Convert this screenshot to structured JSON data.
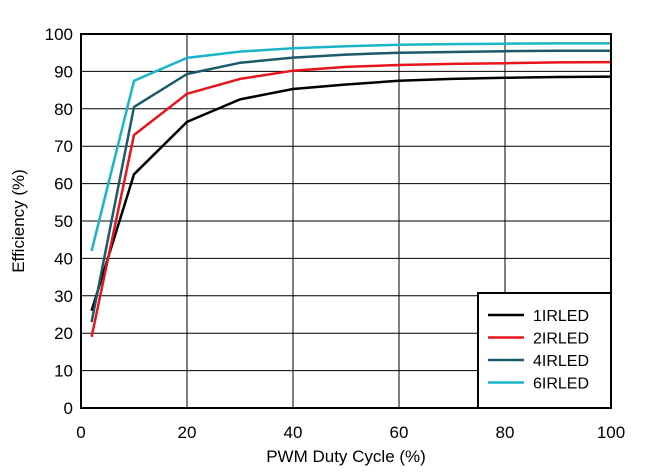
{
  "chart_data": {
    "type": "line",
    "title": "",
    "xlabel": "PWM Duty Cycle (%)",
    "ylabel": "Efficiency (%)",
    "xlim": [
      0,
      100
    ],
    "ylim": [
      0,
      100
    ],
    "xticks": [
      0,
      20,
      40,
      60,
      80,
      100
    ],
    "yticks": [
      0,
      10,
      20,
      30,
      40,
      50,
      60,
      70,
      80,
      90,
      100
    ],
    "grid": true,
    "legend_position": "bottom-right",
    "series": [
      {
        "name": "1IRLED",
        "color": "#000000",
        "x": [
          2,
          10,
          20,
          30,
          40,
          50,
          60,
          70,
          80,
          90,
          100
        ],
        "y": [
          26,
          62.5,
          76.5,
          82.5,
          85.3,
          86.5,
          87.5,
          88,
          88.3,
          88.5,
          88.6
        ]
      },
      {
        "name": "2IRLED",
        "color": "#e8141c",
        "x": [
          2,
          10,
          20,
          30,
          40,
          50,
          60,
          70,
          80,
          90,
          100
        ],
        "y": [
          19,
          73,
          84,
          88,
          90.2,
          91.2,
          91.7,
          92,
          92.2,
          92.4,
          92.5
        ]
      },
      {
        "name": "4IRLED",
        "color": "#1a5a6a",
        "x": [
          2,
          10,
          20,
          30,
          40,
          50,
          60,
          70,
          80,
          90,
          100
        ],
        "y": [
          23,
          80.5,
          89.3,
          92.3,
          93.7,
          94.5,
          95,
          95.2,
          95.4,
          95.5,
          95.5
        ]
      },
      {
        "name": "6IRLED",
        "color": "#1ab4c8",
        "x": [
          2,
          10,
          20,
          30,
          40,
          50,
          60,
          70,
          80,
          90,
          100
        ],
        "y": [
          42,
          87.5,
          93.6,
          95.3,
          96.2,
          96.7,
          97.1,
          97.3,
          97.4,
          97.5,
          97.5
        ]
      }
    ]
  }
}
